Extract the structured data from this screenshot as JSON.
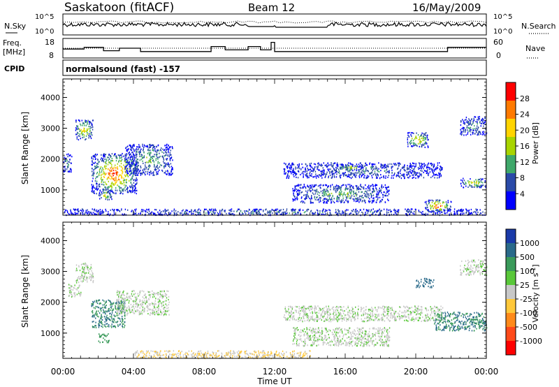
{
  "header": {
    "station": "Saskatoon (fitACF)",
    "beam": "Beam 12",
    "date": "16/May/2009"
  },
  "strip_nsky": {
    "label": "N.Sky",
    "right_label": "N.Search",
    "left_ticks": [
      "10^5",
      "10^0"
    ],
    "right_ticks": [
      "10^5",
      "10^0"
    ]
  },
  "strip_freq": {
    "label_line1": "Freq.",
    "label_line2": "[MHz]",
    "right_label": "Nave",
    "left_ticks": [
      "18",
      "8"
    ],
    "right_ticks": [
      "60",
      "0"
    ],
    "freq_steps": [
      {
        "t0": 0.0,
        "t1": 1.2,
        "v": 12.5
      },
      {
        "t0": 1.2,
        "t1": 2.3,
        "v": 13.5
      },
      {
        "t0": 2.3,
        "t1": 3.2,
        "v": 11.5
      },
      {
        "t0": 3.2,
        "t1": 4.4,
        "v": 13.0
      },
      {
        "t0": 4.4,
        "t1": 5.3,
        "v": 11.0
      },
      {
        "t0": 5.3,
        "t1": 8.4,
        "v": 11.0
      },
      {
        "t0": 8.4,
        "t1": 9.2,
        "v": 14.0
      },
      {
        "t0": 9.2,
        "t1": 10.5,
        "v": 12.0
      },
      {
        "t0": 10.5,
        "t1": 11.2,
        "v": 14.0
      },
      {
        "t0": 11.2,
        "t1": 11.8,
        "v": 12.0
      },
      {
        "t0": 11.8,
        "t1": 12.0,
        "v": 16.5
      },
      {
        "t0": 12.0,
        "t1": 21.8,
        "v": 11.0
      },
      {
        "t0": 21.8,
        "t1": 24.0,
        "v": 13.5
      }
    ]
  },
  "cpid": {
    "label": "CPID",
    "text": "normalsound (fast) -157"
  },
  "chart_data": [
    {
      "type": "heatmap",
      "name": "power",
      "ylabel": "Slant Range [km]",
      "yticks": [
        1000,
        2000,
        3000,
        4000
      ],
      "ylim": [
        180,
        4600
      ],
      "xlim": [
        0,
        24
      ],
      "colorbar": {
        "label": "Power [dB]",
        "ticks": [
          "28",
          "24",
          "20",
          "16",
          "12",
          "8",
          "4"
        ],
        "colors": [
          "#ff0000",
          "#ff7a00",
          "#ffd400",
          "#a8d400",
          "#3fa86a",
          "#2a4aa8",
          "#0000ff"
        ]
      },
      "echo_regions": [
        {
          "t0": 0.7,
          "t1": 1.7,
          "r0": 2650,
          "r1": 3300,
          "peak": 22
        },
        {
          "t0": 0.0,
          "t1": 0.5,
          "r0": 1600,
          "r1": 2200,
          "peak": 12
        },
        {
          "t0": 1.6,
          "t1": 4.2,
          "r0": 900,
          "r1": 2200,
          "peak": 28
        },
        {
          "t0": 2.0,
          "t1": 2.8,
          "r0": 700,
          "r1": 1000,
          "peak": 20
        },
        {
          "t0": 3.5,
          "t1": 6.2,
          "r0": 1500,
          "r1": 2500,
          "peak": 14
        },
        {
          "t0": 0.0,
          "t1": 24.0,
          "r0": 200,
          "r1": 400,
          "peak": 10
        },
        {
          "t0": 12.5,
          "t1": 21.5,
          "r0": 1400,
          "r1": 1900,
          "peak": 10
        },
        {
          "t0": 13.0,
          "t1": 18.5,
          "r0": 600,
          "r1": 1200,
          "peak": 14
        },
        {
          "t0": 15.5,
          "t1": 17.0,
          "r0": 1650,
          "r1": 1850,
          "peak": 18
        },
        {
          "t0": 19.5,
          "t1": 20.7,
          "r0": 2400,
          "r1": 2900,
          "peak": 22
        },
        {
          "t0": 20.5,
          "t1": 22.0,
          "r0": 300,
          "r1": 700,
          "peak": 28
        },
        {
          "t0": 22.5,
          "t1": 24.0,
          "r0": 1100,
          "r1": 1400,
          "peak": 20
        },
        {
          "t0": 22.5,
          "t1": 24.0,
          "r0": 2800,
          "r1": 3400,
          "peak": 12
        }
      ]
    },
    {
      "type": "heatmap",
      "name": "velocity",
      "ylabel": "Slant Range [km]",
      "yticks": [
        1000,
        2000,
        3000,
        4000
      ],
      "ylim": [
        180,
        4600
      ],
      "xlim": [
        0,
        24
      ],
      "xticks": [
        "00:00",
        "04:00",
        "08:00",
        "12:00",
        "16:00",
        "20:00",
        "00:00"
      ],
      "xlabel": "Time UT",
      "colorbar": {
        "label": "Velocity [m s^-1]",
        "ticks": [
          "1000",
          "500",
          "100",
          "25",
          "-25",
          "-100",
          "-500",
          "-1000"
        ],
        "colors": [
          "#1a3aa8",
          "#2a6a8a",
          "#3a9a5a",
          "#5ac83a",
          "#c8c8c8",
          "#ffc83a",
          "#ff8a1a",
          "#ff4a1a",
          "#ff0000"
        ]
      },
      "echo_regions": [
        {
          "t0": 0.7,
          "t1": 1.7,
          "r0": 2650,
          "r1": 3300,
          "vel": 0
        },
        {
          "t0": 0.3,
          "t1": 1.0,
          "r0": 2200,
          "r1": 2600,
          "vel": 0
        },
        {
          "t0": 1.6,
          "t1": 3.5,
          "r0": 1200,
          "r1": 2100,
          "vel": 300
        },
        {
          "t0": 2.0,
          "t1": 2.6,
          "r0": 700,
          "r1": 1000,
          "vel": 150
        },
        {
          "t0": 3.0,
          "t1": 6.0,
          "r0": 1600,
          "r1": 2400,
          "vel": 0
        },
        {
          "t0": 4.0,
          "t1": 14.0,
          "r0": 200,
          "r1": 450,
          "vel": -60
        },
        {
          "t0": 12.5,
          "t1": 21.5,
          "r0": 1400,
          "r1": 1900,
          "vel": 0
        },
        {
          "t0": 13.0,
          "t1": 18.5,
          "r0": 600,
          "r1": 1200,
          "vel": 0
        },
        {
          "t0": 20.0,
          "t1": 21.0,
          "r0": 2500,
          "r1": 2800,
          "vel": 400
        },
        {
          "t0": 21.0,
          "t1": 24.0,
          "r0": 1100,
          "r1": 1700,
          "vel": 300
        },
        {
          "t0": 22.5,
          "t1": 24.0,
          "r0": 2900,
          "r1": 3400,
          "vel": 0
        }
      ]
    }
  ]
}
